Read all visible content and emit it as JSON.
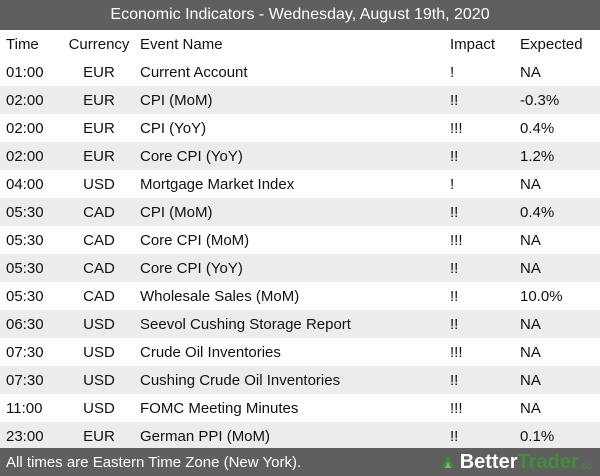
{
  "title": "Economic Indicators - Wednesday, August 19th, 2020",
  "columns": {
    "time": "Time",
    "currency": "Currency",
    "event": "Event Name",
    "impact": "Impact",
    "expected": "Expected"
  },
  "rows": [
    {
      "time": "01:00",
      "currency": "EUR",
      "event": "Current Account",
      "impact": "!",
      "expected": "NA"
    },
    {
      "time": "02:00",
      "currency": "EUR",
      "event": "CPI (MoM)",
      "impact": "!!",
      "expected": "-0.3%"
    },
    {
      "time": "02:00",
      "currency": "EUR",
      "event": "CPI (YoY)",
      "impact": "!!!",
      "expected": "0.4%"
    },
    {
      "time": "02:00",
      "currency": "EUR",
      "event": "Core CPI (YoY)",
      "impact": "!!",
      "expected": "1.2%"
    },
    {
      "time": "04:00",
      "currency": "USD",
      "event": "Mortgage Market Index",
      "impact": "!",
      "expected": "NA"
    },
    {
      "time": "05:30",
      "currency": "CAD",
      "event": "CPI (MoM)",
      "impact": "!!",
      "expected": "0.4%"
    },
    {
      "time": "05:30",
      "currency": "CAD",
      "event": "Core CPI (MoM)",
      "impact": "!!!",
      "expected": "NA"
    },
    {
      "time": "05:30",
      "currency": "CAD",
      "event": "Core CPI (YoY)",
      "impact": "!!",
      "expected": "NA"
    },
    {
      "time": "05:30",
      "currency": "CAD",
      "event": "Wholesale Sales (MoM)",
      "impact": "!!",
      "expected": "10.0%"
    },
    {
      "time": "06:30",
      "currency": "USD",
      "event": "Seevol Cushing Storage Report",
      "impact": "!!",
      "expected": "NA"
    },
    {
      "time": "07:30",
      "currency": "USD",
      "event": "Crude Oil Inventories",
      "impact": "!!!",
      "expected": "NA"
    },
    {
      "time": "07:30",
      "currency": "USD",
      "event": "Cushing Crude Oil Inventories",
      "impact": "!!",
      "expected": "NA"
    },
    {
      "time": "11:00",
      "currency": "USD",
      "event": "FOMC Meeting Minutes",
      "impact": "!!!",
      "expected": "NA"
    },
    {
      "time": "23:00",
      "currency": "EUR",
      "event": "German PPI (MoM)",
      "impact": "!!",
      "expected": "0.1%"
    }
  ],
  "footer": {
    "note": "All times are Eastern Time Zone (New York).",
    "brand_better": "Better",
    "brand_trader": "Trader",
    "brand_suffix": ".co"
  },
  "colors": {
    "bar": "#5f5f5f",
    "row_shade": "#ececec",
    "brand_green": "#3f8f3a"
  },
  "icons": {
    "brand_mark": "bettertrader-logo-icon"
  }
}
